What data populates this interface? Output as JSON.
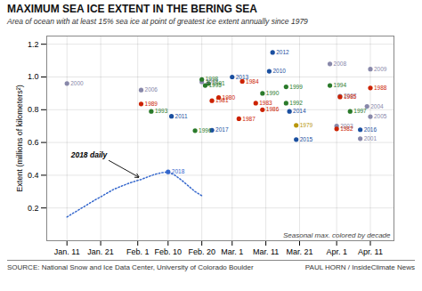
{
  "chart_data": {
    "type": "scatter",
    "title": "MAXIMUM SEA ICE EXTENT IN THE BERING SEA",
    "subtitle": "Area of ocean with at least 15% sea ice at point of greatest ice extent annually since 1979",
    "source": "SOURCE: National Snow and Ice Data Center, University of Colorado Boulder",
    "credit": "PAUL HORN / InsideClimate News",
    "ylabel": "Extent (millions of kilometers²)",
    "series": [
      {
        "type": "scatter",
        "x": [
          11,
          33,
          33,
          36,
          51,
          51,
          53,
          52,
          42,
          49,
          54,
          56,
          62,
          54,
          60,
          63,
          67,
          69,
          69,
          72,
          71,
          76,
          76,
          77,
          79,
          79,
          89,
          89,
          92,
          92,
          91,
          91,
          98,
          101,
          101,
          95,
          100,
          98,
          101
        ],
        "values": [
          0.96,
          0.92,
          0.835,
          0.79,
          0.97,
          0.985,
          0.96,
          0.948,
          0.76,
          0.672,
          0.855,
          0.875,
          0.745,
          0.675,
          1.0,
          0.973,
          0.84,
          0.9,
          0.8,
          1.15,
          1.035,
          0.94,
          0.84,
          0.79,
          0.705,
          0.618,
          1.08,
          0.948,
          0.883,
          0.878,
          0.7,
          0.683,
          0.678,
          1.048,
          0.933,
          0.79,
          0.82,
          0.623,
          0.758
        ],
        "labels": [
          "2000",
          "2006",
          "1989",
          "1993",
          "2002",
          "1998",
          "1991",
          "1995",
          "2011",
          "1996",
          "1981",
          "1980",
          "1987",
          "2017",
          "2013",
          "1984",
          "1983",
          "1990",
          "1986",
          "2012",
          "2010",
          "1999",
          "1992",
          "2014",
          "1979",
          "2015",
          "2008",
          "1994",
          "2007",
          "1985",
          "2003",
          "1982",
          "2016",
          "2009",
          "1988",
          "1997",
          "2004",
          "2001",
          "2005"
        ],
        "colors": [
          "#8888aa",
          "#8888aa",
          "#cc2200",
          "#2a7a2a",
          "#8888aa",
          "#2a7a2a",
          "#2a7a2a",
          "#2a7a2a",
          "#1a4fa0",
          "#2a7a2a",
          "#cc2200",
          "#cc2200",
          "#cc2200",
          "#1a4fa0",
          "#1a4fa0",
          "#cc2200",
          "#cc2200",
          "#2a7a2a",
          "#cc2200",
          "#1a4fa0",
          "#1a4fa0",
          "#2a7a2a",
          "#2a7a2a",
          "#1a4fa0",
          "#b8960a",
          "#1a4fa0",
          "#8888aa",
          "#2a7a2a",
          "#8888aa",
          "#cc2200",
          "#8888aa",
          "#cc2200",
          "#1a4fa0",
          "#8888aa",
          "#cc2200",
          "#2a7a2a",
          "#8888aa",
          "#8888aa",
          "#8888aa"
        ]
      },
      {
        "type": "line",
        "color": "#3366cc",
        "line_style": "dotted",
        "x": [
          11,
          13,
          15,
          17,
          19,
          21,
          23,
          25,
          27,
          29,
          31,
          33,
          35,
          37,
          39,
          41,
          43,
          45,
          47,
          49,
          51
        ],
        "values": [
          0.145,
          0.17,
          0.195,
          0.22,
          0.245,
          0.268,
          0.292,
          0.315,
          0.332,
          0.348,
          0.362,
          0.374,
          0.39,
          0.405,
          0.415,
          0.42,
          0.4,
          0.37,
          0.335,
          0.3,
          0.275
        ]
      },
      {
        "type": "scatter",
        "color": "#3366cc",
        "x": [
          41
        ],
        "values": [
          0.42
        ],
        "labels": [
          "2018"
        ]
      }
    ],
    "annotations": [
      {
        "text": "2018 daily",
        "x": 33,
        "y": 0.374
      },
      {
        "text": "Seasonal max. colored by decade"
      }
    ],
    "xlim": [
      5,
      108
    ],
    "xticks": [
      {
        "value": 11,
        "label": "Jan. 11"
      },
      {
        "value": 21,
        "label": "Jan. 21"
      },
      {
        "value": 32,
        "label": "Feb. 1"
      },
      {
        "value": 41,
        "label": "Feb. 10"
      },
      {
        "value": 51,
        "label": "Feb. 20"
      },
      {
        "value": 60,
        "label": "Mar. 1"
      },
      {
        "value": 70,
        "label": "Mar. 11"
      },
      {
        "value": 80,
        "label": "Mar. 21"
      },
      {
        "value": 91,
        "label": "Apr. 1"
      },
      {
        "value": 101,
        "label": "Apr. 11"
      }
    ],
    "ylim": [
      0.0,
      1.25
    ],
    "yticks": [
      0.2,
      0.4,
      0.6,
      0.8,
      {
        "value": 1.0,
        "label": "1.0"
      },
      1.2
    ],
    "grid": true
  }
}
